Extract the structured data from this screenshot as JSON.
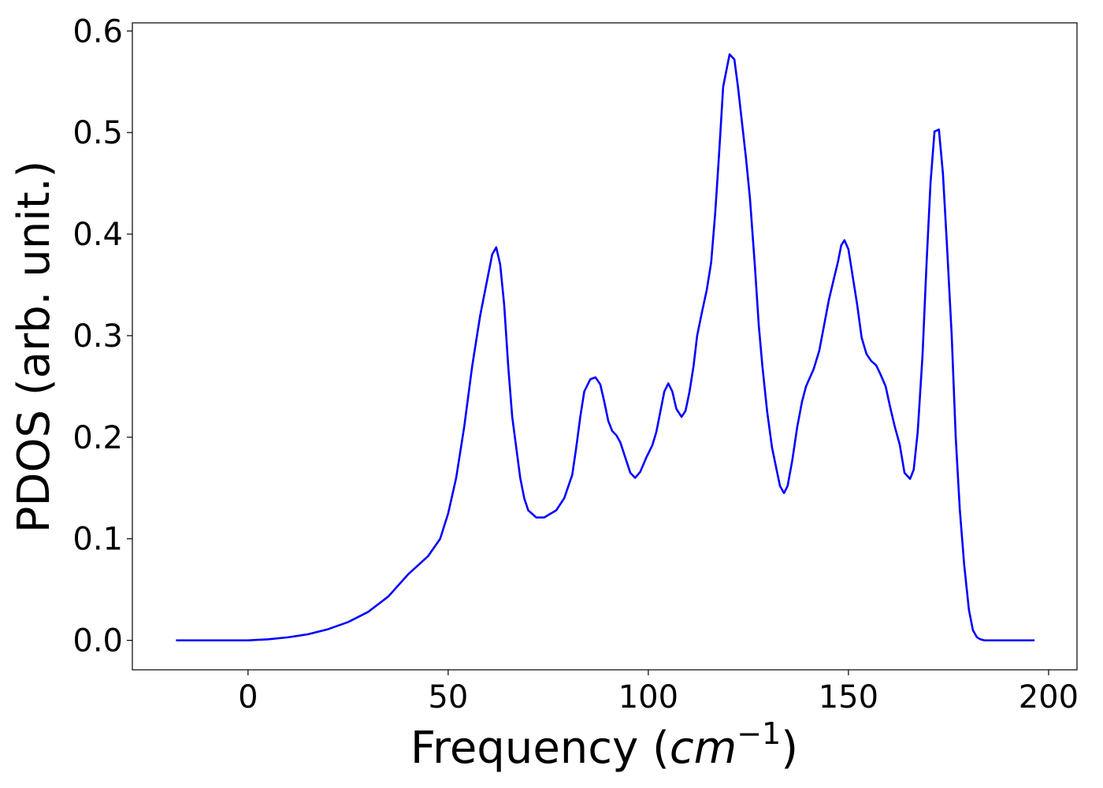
{
  "chart_data": {
    "type": "line",
    "xlabel": [
      "Frequency (",
      "cm",
      "−1",
      ")"
    ],
    "ylabel": "PDOS (arb. unit.)",
    "xlim": [
      -28.9,
      207.1
    ],
    "ylim": [
      -0.029,
      0.608
    ],
    "xticks": [
      0,
      50,
      100,
      150,
      200
    ],
    "yticks": [
      {
        "value": 0,
        "label": "0.0"
      },
      {
        "value": 0.1,
        "label": "0.1"
      },
      {
        "value": 0.2,
        "label": "0.2"
      },
      {
        "value": 0.3,
        "label": "0.3"
      },
      {
        "value": 0.4,
        "label": "0.4"
      },
      {
        "value": 0.5,
        "label": "0.5"
      },
      {
        "value": 0.6,
        "label": "0.6"
      }
    ],
    "grid": false,
    "x": [
      -18,
      -10,
      0,
      5,
      10,
      15,
      20,
      25,
      30,
      35,
      40,
      45,
      48,
      50,
      52,
      54,
      56,
      58,
      60,
      61,
      62,
      63,
      64,
      65,
      66,
      67,
      68,
      69,
      70,
      72,
      74,
      77,
      79,
      81,
      82,
      83,
      84,
      85.5,
      86.8,
      88,
      89,
      90,
      91,
      92,
      93,
      95.5,
      96.7,
      98,
      99.5,
      101,
      102,
      104,
      105,
      106,
      107,
      108.3,
      109.3,
      110.3,
      111.3,
      112.2,
      113.5,
      114.6,
      115.7,
      116.7,
      117.7,
      118.7,
      120.3,
      121.5,
      122.4,
      124.4,
      125.4,
      126.6,
      127.6,
      128.5,
      129.7,
      130.9,
      132.1,
      132.9,
      133.9,
      134.8,
      136,
      137.2,
      138.4,
      139.4,
      141.3,
      142.7,
      143.9,
      145.1,
      146.3,
      147.4,
      148.2,
      149,
      150,
      151,
      152.2,
      153.3,
      154.5,
      155.7,
      156.9,
      158,
      159.3,
      160.4,
      161.6,
      162.8,
      164,
      165.4,
      166.3,
      167.3,
      168.5,
      169.5,
      170.5,
      171.5,
      172.6,
      173.6,
      174.6,
      175.8,
      176.8,
      177.8,
      178.9,
      180.1,
      181.1,
      182.1,
      183,
      184,
      196.5
    ],
    "series": [
      {
        "name": "PDOS",
        "color": "#0000ff",
        "values": [
          0,
          0,
          0,
          0.001,
          0.003,
          0.006,
          0.011,
          0.018,
          0.028,
          0.043,
          0.065,
          0.083,
          0.1,
          0.125,
          0.16,
          0.21,
          0.27,
          0.32,
          0.36,
          0.38,
          0.387,
          0.37,
          0.33,
          0.27,
          0.22,
          0.19,
          0.16,
          0.14,
          0.128,
          0.121,
          0.121,
          0.128,
          0.14,
          0.163,
          0.19,
          0.22,
          0.245,
          0.257,
          0.259,
          0.252,
          0.235,
          0.216,
          0.206,
          0.202,
          0.195,
          0.165,
          0.16,
          0.166,
          0.18,
          0.192,
          0.205,
          0.245,
          0.253,
          0.245,
          0.228,
          0.22,
          0.226,
          0.245,
          0.27,
          0.3,
          0.325,
          0.345,
          0.372,
          0.42,
          0.48,
          0.545,
          0.577,
          0.572,
          0.545,
          0.475,
          0.435,
          0.37,
          0.31,
          0.27,
          0.225,
          0.19,
          0.167,
          0.152,
          0.145,
          0.152,
          0.178,
          0.21,
          0.235,
          0.25,
          0.267,
          0.285,
          0.31,
          0.335,
          0.355,
          0.373,
          0.389,
          0.394,
          0.385,
          0.36,
          0.33,
          0.298,
          0.282,
          0.275,
          0.271,
          0.262,
          0.25,
          0.23,
          0.21,
          0.193,
          0.165,
          0.159,
          0.168,
          0.205,
          0.28,
          0.37,
          0.45,
          0.501,
          0.503,
          0.46,
          0.39,
          0.3,
          0.2,
          0.13,
          0.075,
          0.03,
          0.01,
          0.003,
          0.001,
          0,
          0
        ]
      }
    ]
  }
}
